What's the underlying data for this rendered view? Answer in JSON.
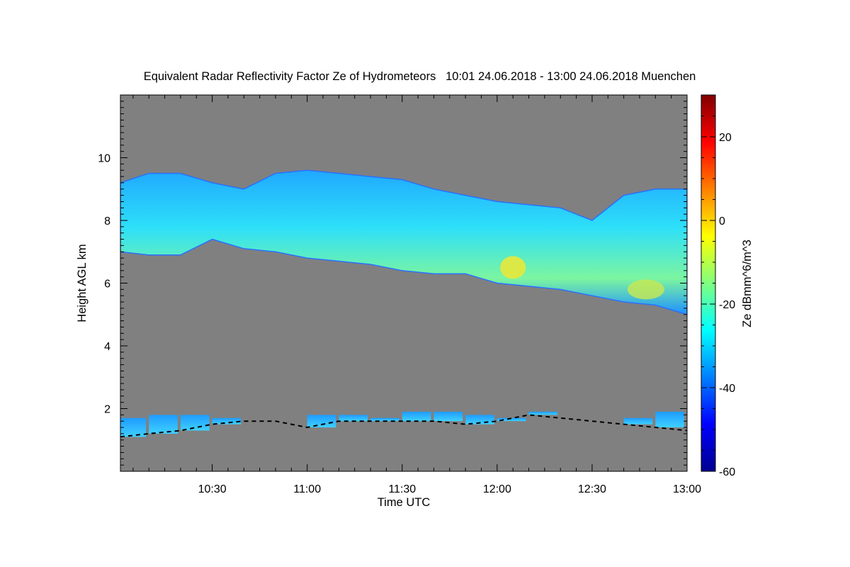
{
  "chart_data": {
    "type": "heatmap",
    "title": "Equivalent Radar Reflectivity Factor Ze of Hydrometeors   10:01 24.06.2018 - 13:00 24.06.2018 Muenchen",
    "xlabel": "Time UTC",
    "ylabel": "Height AGL km",
    "colorbar_label": "Ze dBmm^6/m^3",
    "xlim": [
      "10:01",
      "13:00"
    ],
    "ylim": [
      0,
      12
    ],
    "clim": [
      -60,
      30
    ],
    "x_ticks": [
      "10:30",
      "11:00",
      "11:30",
      "12:00",
      "12:30",
      "13:00"
    ],
    "y_ticks": [
      2,
      4,
      6,
      8,
      10
    ],
    "colorbar_ticks": [
      -60,
      -40,
      -20,
      0,
      20
    ],
    "colormap": "jet",
    "background_color": "#808080",
    "upper_cloud_layer": {
      "time": [
        "10:01",
        "10:10",
        "10:20",
        "10:30",
        "10:40",
        "10:50",
        "11:00",
        "11:10",
        "11:20",
        "11:30",
        "11:40",
        "11:50",
        "12:00",
        "12:10",
        "12:20",
        "12:30",
        "12:40",
        "12:50",
        "13:00"
      ],
      "top_km": [
        9.2,
        9.5,
        9.5,
        9.2,
        9.0,
        9.5,
        9.6,
        9.5,
        9.4,
        9.3,
        9.0,
        8.8,
        8.6,
        8.5,
        8.4,
        8.0,
        8.8,
        9.0,
        9.0
      ],
      "base_km": [
        7.0,
        6.9,
        6.9,
        7.4,
        7.1,
        7.0,
        6.8,
        6.7,
        6.6,
        6.4,
        6.3,
        6.3,
        6.0,
        5.9,
        5.8,
        5.6,
        5.4,
        5.3,
        5.0
      ],
      "peak_ze_dbz": -8
    },
    "lower_cloud_layer": {
      "time": [
        "10:01",
        "10:10",
        "10:20",
        "10:30",
        "10:40",
        "10:50",
        "11:00",
        "11:10",
        "11:20",
        "11:30",
        "11:40",
        "11:50",
        "12:00",
        "12:10",
        "12:20",
        "12:30",
        "12:40",
        "12:50",
        "13:00"
      ],
      "base_km": [
        1.1,
        1.2,
        1.3,
        1.5,
        1.6,
        1.6,
        1.4,
        1.6,
        1.6,
        1.6,
        1.6,
        1.5,
        1.6,
        1.8,
        1.7,
        1.6,
        1.5,
        1.4,
        1.3
      ],
      "top_km": [
        1.7,
        1.8,
        1.8,
        1.7,
        0,
        0,
        1.8,
        1.8,
        1.7,
        1.9,
        1.9,
        1.8,
        1.7,
        1.9,
        0,
        0,
        1.7,
        1.9,
        0
      ],
      "typical_ze_dbz": -32
    }
  }
}
